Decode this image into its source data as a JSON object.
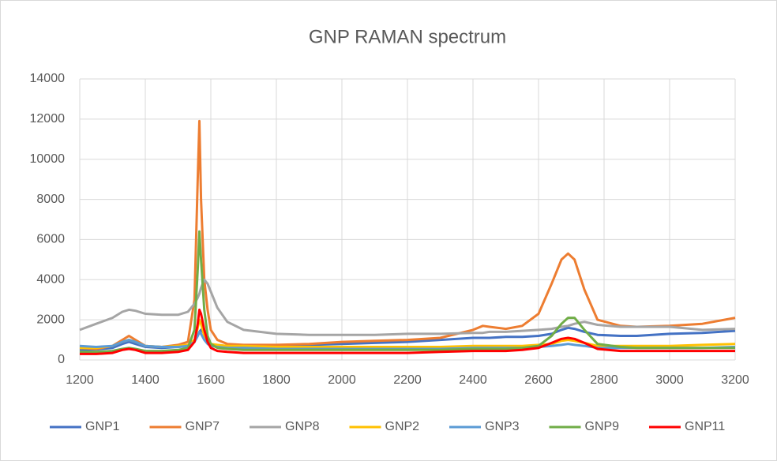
{
  "chart_data": {
    "type": "line",
    "title": "GNP RAMAN spectrum",
    "x": [
      1200,
      1250,
      1300,
      1330,
      1350,
      1370,
      1400,
      1450,
      1500,
      1530,
      1550,
      1560,
      1565,
      1570,
      1580,
      1590,
      1600,
      1620,
      1650,
      1700,
      1800,
      1900,
      2000,
      2100,
      2200,
      2300,
      2400,
      2430,
      2450,
      2500,
      2550,
      2600,
      2640,
      2670,
      2690,
      2710,
      2740,
      2780,
      2850,
      2900,
      3000,
      3100,
      3200
    ],
    "series": [
      {
        "name": "GNP1",
        "color": "#4472c4",
        "values": [
          500,
          520,
          600,
          800,
          900,
          800,
          650,
          600,
          650,
          700,
          900,
          1200,
          1400,
          1500,
          1300,
          1000,
          800,
          700,
          650,
          650,
          700,
          750,
          800,
          850,
          900,
          1000,
          1100,
          1100,
          1100,
          1150,
          1150,
          1200,
          1300,
          1500,
          1600,
          1550,
          1400,
          1250,
          1200,
          1200,
          1300,
          1350,
          1450
        ]
      },
      {
        "name": "GNP7",
        "color": "#ed7d31",
        "values": [
          600,
          550,
          700,
          1000,
          1200,
          1000,
          700,
          650,
          750,
          900,
          3000,
          9000,
          11900,
          8000,
          4000,
          2500,
          1500,
          1000,
          800,
          750,
          750,
          800,
          900,
          950,
          1000,
          1100,
          1500,
          1700,
          1650,
          1550,
          1700,
          2300,
          3800,
          5000,
          5300,
          5000,
          3500,
          2000,
          1700,
          1650,
          1700,
          1800,
          2100
        ]
      },
      {
        "name": "GNP8",
        "color": "#a5a5a5",
        "values": [
          1500,
          1800,
          2100,
          2400,
          2500,
          2450,
          2300,
          2250,
          2250,
          2400,
          2800,
          3100,
          3300,
          3600,
          4000,
          3800,
          3400,
          2600,
          1900,
          1500,
          1300,
          1250,
          1250,
          1250,
          1300,
          1300,
          1350,
          1350,
          1400,
          1400,
          1450,
          1500,
          1550,
          1650,
          1700,
          1800,
          1900,
          1750,
          1650,
          1650,
          1650,
          1500,
          1550
        ]
      },
      {
        "name": "GNP2",
        "color": "#ffc000",
        "values": [
          600,
          600,
          700,
          900,
          1000,
          900,
          700,
          650,
          700,
          750,
          1000,
          1600,
          2000,
          1800,
          1200,
          900,
          800,
          750,
          700,
          700,
          650,
          650,
          650,
          650,
          650,
          650,
          700,
          700,
          700,
          700,
          700,
          750,
          800,
          950,
          1000,
          950,
          850,
          700,
          700,
          700,
          700,
          750,
          800
        ]
      },
      {
        "name": "GNP3",
        "color": "#5b9bd5",
        "values": [
          700,
          650,
          700,
          900,
          1000,
          900,
          700,
          650,
          650,
          700,
          900,
          1200,
          1400,
          1300,
          1000,
          800,
          700,
          650,
          600,
          600,
          550,
          550,
          550,
          550,
          550,
          550,
          600,
          600,
          600,
          600,
          600,
          650,
          700,
          750,
          800,
          750,
          700,
          600,
          600,
          600,
          600,
          600,
          650
        ]
      },
      {
        "name": "GNP9",
        "color": "#70ad47",
        "values": [
          400,
          400,
          450,
          550,
          600,
          550,
          450,
          450,
          500,
          600,
          1500,
          4500,
          6400,
          5000,
          2500,
          1200,
          800,
          600,
          550,
          500,
          500,
          500,
          500,
          500,
          500,
          500,
          550,
          550,
          550,
          550,
          600,
          700,
          1200,
          1800,
          2100,
          2100,
          1500,
          800,
          650,
          600,
          600,
          600,
          600
        ]
      },
      {
        "name": "GNP11",
        "color": "#ff0000",
        "values": [
          300,
          300,
          350,
          500,
          550,
          500,
          350,
          350,
          400,
          500,
          900,
          1800,
          2500,
          2300,
          1500,
          900,
          600,
          450,
          400,
          350,
          350,
          350,
          350,
          350,
          350,
          400,
          450,
          450,
          450,
          450,
          500,
          600,
          850,
          1050,
          1100,
          1050,
          850,
          550,
          450,
          450,
          450,
          450,
          450
        ]
      }
    ],
    "xlim": [
      1200,
      3200
    ],
    "xticks": [
      1200,
      1400,
      1600,
      1800,
      2000,
      2200,
      2400,
      2600,
      2800,
      3000,
      3200
    ],
    "ylim": [
      0,
      14000
    ],
    "yticks": [
      0,
      2000,
      4000,
      6000,
      8000,
      10000,
      12000,
      14000
    ],
    "grid": true,
    "legend": "bottom"
  }
}
